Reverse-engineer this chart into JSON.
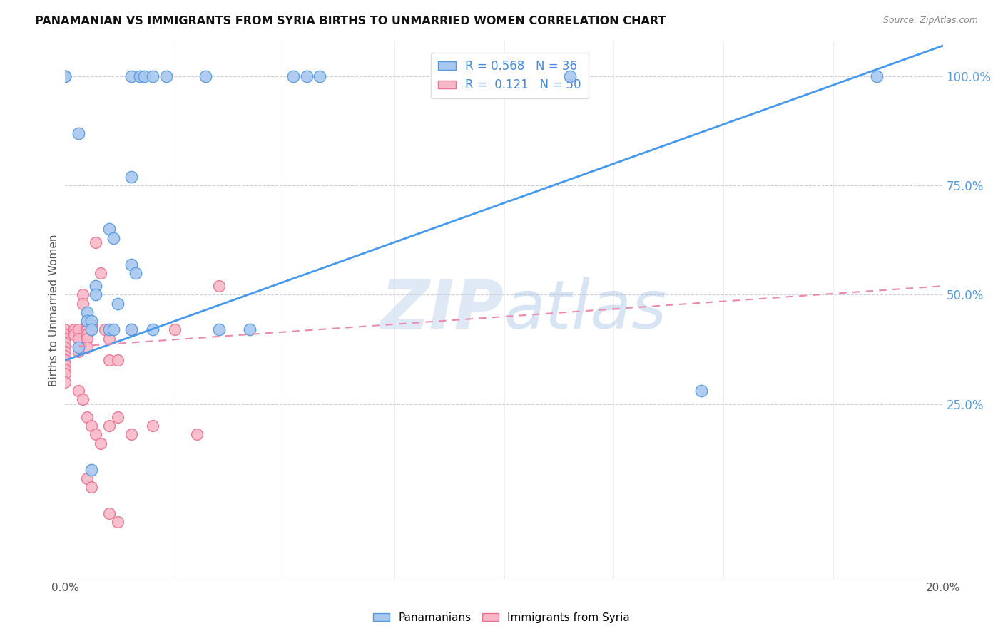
{
  "title": "PANAMANIAN VS IMMIGRANTS FROM SYRIA BIRTHS TO UNMARRIED WOMEN CORRELATION CHART",
  "source": "Source: ZipAtlas.com",
  "ylabel": "Births to Unmarried Women",
  "xmin": 0.0,
  "xmax": 20.0,
  "ymin": -15.0,
  "ymax": 108.0,
  "yticks_right": [
    25.0,
    50.0,
    75.0,
    100.0
  ],
  "blue_R": 0.568,
  "blue_N": 36,
  "pink_R": 0.121,
  "pink_N": 50,
  "blue_color": "#a8c8f0",
  "blue_edge_color": "#5599dd",
  "pink_color": "#f8b8c8",
  "pink_edge_color": "#e87090",
  "blue_line_color": "#4499ee",
  "pink_line_color": "#ee88aa",
  "blue_scatter": [
    [
      0.0,
      100.0
    ],
    [
      0.0,
      100.0
    ],
    [
      0.0,
      100.0
    ],
    [
      1.5,
      100.0
    ],
    [
      1.7,
      100.0
    ],
    [
      1.8,
      100.0
    ],
    [
      2.0,
      100.0
    ],
    [
      2.3,
      100.0
    ],
    [
      3.2,
      100.0
    ],
    [
      5.2,
      100.0
    ],
    [
      5.5,
      100.0
    ],
    [
      5.8,
      100.0
    ],
    [
      11.5,
      100.0
    ],
    [
      18.5,
      100.0
    ],
    [
      0.3,
      87.0
    ],
    [
      1.5,
      77.0
    ],
    [
      1.0,
      65.0
    ],
    [
      1.1,
      63.0
    ],
    [
      1.5,
      57.0
    ],
    [
      1.6,
      55.0
    ],
    [
      0.7,
      52.0
    ],
    [
      0.7,
      50.0
    ],
    [
      1.2,
      48.0
    ],
    [
      0.5,
      46.0
    ],
    [
      0.5,
      44.0
    ],
    [
      0.6,
      44.0
    ],
    [
      0.6,
      42.0
    ],
    [
      1.0,
      42.0
    ],
    [
      1.1,
      42.0
    ],
    [
      1.5,
      42.0
    ],
    [
      2.0,
      42.0
    ],
    [
      3.5,
      42.0
    ],
    [
      4.2,
      42.0
    ],
    [
      0.3,
      38.0
    ],
    [
      14.5,
      28.0
    ],
    [
      0.6,
      10.0
    ]
  ],
  "pink_scatter": [
    [
      0.0,
      42.0
    ],
    [
      0.0,
      41.0
    ],
    [
      0.0,
      40.0
    ],
    [
      0.0,
      39.0
    ],
    [
      0.0,
      38.0
    ],
    [
      0.0,
      37.0
    ],
    [
      0.0,
      36.0
    ],
    [
      0.0,
      35.0
    ],
    [
      0.0,
      34.0
    ],
    [
      0.0,
      33.0
    ],
    [
      0.0,
      32.0
    ],
    [
      0.0,
      30.0
    ],
    [
      0.2,
      42.0
    ],
    [
      0.2,
      41.0
    ],
    [
      0.3,
      42.0
    ],
    [
      0.3,
      40.0
    ],
    [
      0.3,
      37.0
    ],
    [
      0.4,
      50.0
    ],
    [
      0.4,
      48.0
    ],
    [
      0.5,
      43.0
    ],
    [
      0.5,
      42.0
    ],
    [
      0.5,
      41.0
    ],
    [
      0.5,
      40.0
    ],
    [
      0.5,
      38.0
    ],
    [
      0.6,
      43.0
    ],
    [
      0.6,
      42.0
    ],
    [
      0.7,
      62.0
    ],
    [
      0.8,
      55.0
    ],
    [
      0.9,
      42.0
    ],
    [
      1.0,
      40.0
    ],
    [
      1.0,
      35.0
    ],
    [
      1.2,
      35.0
    ],
    [
      1.5,
      42.0
    ],
    [
      2.5,
      42.0
    ],
    [
      3.5,
      52.0
    ],
    [
      0.3,
      28.0
    ],
    [
      0.4,
      26.0
    ],
    [
      0.5,
      22.0
    ],
    [
      0.6,
      20.0
    ],
    [
      0.7,
      18.0
    ],
    [
      0.8,
      16.0
    ],
    [
      1.0,
      20.0
    ],
    [
      1.2,
      22.0
    ],
    [
      1.5,
      18.0
    ],
    [
      2.0,
      20.0
    ],
    [
      3.0,
      18.0
    ],
    [
      0.5,
      8.0
    ],
    [
      0.6,
      6.0
    ],
    [
      1.0,
      0.0
    ],
    [
      1.2,
      -2.0
    ]
  ],
  "watermark_zip": "ZIP",
  "watermark_atlas": "atlas",
  "background_color": "#ffffff",
  "grid_color": "#ccccdd"
}
